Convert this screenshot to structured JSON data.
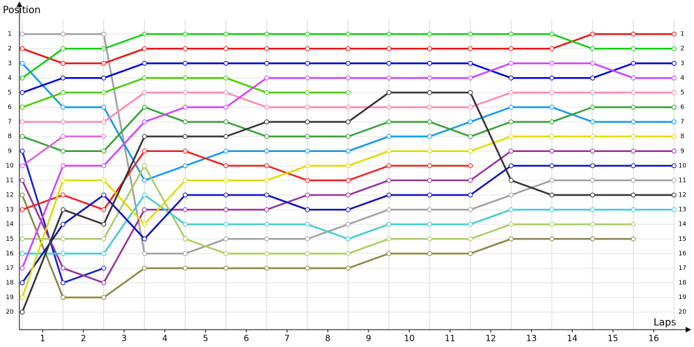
{
  "chart_data": {
    "type": "line",
    "ylabel": "Position",
    "xlabel": "Laps",
    "x": [
      0,
      1,
      2,
      3,
      4,
      5,
      6,
      7,
      8,
      9,
      10,
      11,
      12,
      13,
      14,
      15,
      16
    ],
    "xlim": [
      -0.07,
      16.49
    ],
    "xticks": [
      {
        "value": 0.5,
        "label": "1"
      },
      {
        "value": 1.5,
        "label": "2"
      },
      {
        "value": 2.5,
        "label": "3"
      },
      {
        "value": 3.5,
        "label": "4"
      },
      {
        "value": 4.5,
        "label": "5"
      },
      {
        "value": 5.5,
        "label": "6"
      },
      {
        "value": 6.5,
        "label": "7"
      },
      {
        "value": 7.5,
        "label": "8"
      },
      {
        "value": 8.5,
        "label": "9"
      },
      {
        "value": 9.5,
        "label": "10"
      },
      {
        "value": 10.5,
        "label": "11"
      },
      {
        "value": 11.5,
        "label": "12"
      },
      {
        "value": 12.5,
        "label": "13"
      },
      {
        "value": 13.5,
        "label": "14"
      },
      {
        "value": 14.5,
        "label": "15"
      },
      {
        "value": 15.5,
        "label": "16"
      }
    ],
    "ylim": [
      21.2,
      0
    ],
    "yticks": [
      1,
      2,
      3,
      4,
      5,
      6,
      7,
      8,
      9,
      10,
      11,
      12,
      13,
      14,
      15,
      16,
      17,
      18,
      19,
      20
    ],
    "grid": true,
    "series": [
      {
        "color": "#a0a0a0",
        "values": [
          1,
          1,
          1,
          16,
          16,
          15,
          15,
          15,
          14,
          13,
          13,
          13,
          12,
          11,
          11,
          11,
          11
        ]
      },
      {
        "color": "#ee1111",
        "values": [
          2,
          3,
          3,
          2,
          2,
          2,
          2,
          2,
          2,
          2,
          2,
          2,
          2,
          2,
          1,
          1,
          1
        ]
      },
      {
        "color": "#1199ee",
        "values": [
          3,
          6,
          6,
          11,
          10,
          9,
          9,
          9,
          9,
          8,
          8,
          7,
          6,
          6,
          7,
          7,
          7
        ]
      },
      {
        "color": "#11cc11",
        "values": [
          4,
          2,
          2,
          1,
          1,
          1,
          1,
          1,
          1,
          1,
          1,
          1,
          1,
          1,
          2,
          2,
          2
        ]
      },
      {
        "color": "#0000dd",
        "values": [
          5,
          4,
          4,
          3,
          3,
          3,
          3,
          3,
          3,
          3,
          3,
          3,
          4,
          4,
          4,
          3,
          3
        ]
      },
      {
        "color": "#44cc00",
        "values": [
          6,
          5,
          5,
          4,
          4,
          4,
          5,
          5,
          5,
          null,
          null,
          null,
          null,
          null,
          null,
          null,
          null
        ]
      },
      {
        "color": "#ff88aa",
        "values": [
          7,
          7,
          7,
          5,
          5,
          5,
          6,
          6,
          6,
          6,
          6,
          6,
          5,
          5,
          5,
          5,
          5
        ]
      },
      {
        "color": "#33a033",
        "values": [
          8,
          9,
          9,
          6,
          7,
          7,
          8,
          8,
          8,
          7,
          7,
          8,
          7,
          7,
          6,
          6,
          6
        ]
      },
      {
        "color": "#1122cc",
        "values": [
          9,
          18,
          17,
          null,
          null,
          null,
          null,
          null,
          null,
          null,
          null,
          null,
          null,
          null,
          null,
          null,
          null
        ]
      },
      {
        "color": "#dd66dd",
        "values": [
          10,
          8,
          8,
          null,
          null,
          null,
          null,
          null,
          null,
          null,
          null,
          null,
          null,
          null,
          null,
          null,
          null
        ]
      },
      {
        "color": "#993399",
        "values": [
          11,
          17,
          18,
          13,
          13,
          13,
          13,
          12,
          12,
          11,
          11,
          11,
          9,
          9,
          9,
          9,
          9
        ]
      },
      {
        "color": "#888844",
        "values": [
          12,
          19,
          19,
          17,
          17,
          17,
          17,
          17,
          17,
          16,
          16,
          16,
          15,
          15,
          15,
          15,
          null
        ]
      },
      {
        "color": "#ee2222",
        "values": [
          13,
          12,
          13,
          9,
          9,
          10,
          10,
          11,
          11,
          10,
          10,
          10,
          null,
          null,
          null,
          null,
          null
        ]
      },
      {
        "color": "#aacc66",
        "values": [
          15,
          15,
          15,
          10,
          15,
          16,
          16,
          16,
          16,
          15,
          15,
          15,
          14,
          14,
          14,
          14,
          null
        ]
      },
      {
        "color": "#44cccc",
        "values": [
          16,
          16,
          16,
          12,
          14,
          14,
          14,
          14,
          15,
          14,
          14,
          14,
          13,
          13,
          13,
          13,
          13
        ]
      },
      {
        "color": "#cc44ff",
        "values": [
          17,
          10,
          10,
          7,
          6,
          6,
          4,
          4,
          4,
          4,
          4,
          4,
          3,
          3,
          3,
          4,
          4
        ]
      },
      {
        "color": "#1111bb",
        "values": [
          18,
          14,
          12,
          15,
          12,
          12,
          12,
          13,
          13,
          12,
          12,
          12,
          10,
          10,
          10,
          10,
          10
        ]
      },
      {
        "color": "#dddd00",
        "values": [
          19,
          11,
          11,
          14,
          11,
          11,
          11,
          10,
          10,
          9,
          9,
          9,
          8,
          8,
          8,
          8,
          8
        ]
      },
      {
        "color": "#333333",
        "values": [
          20,
          13,
          14,
          8,
          8,
          8,
          7,
          7,
          7,
          5,
          5,
          5,
          11,
          12,
          12,
          12,
          12
        ]
      }
    ]
  }
}
